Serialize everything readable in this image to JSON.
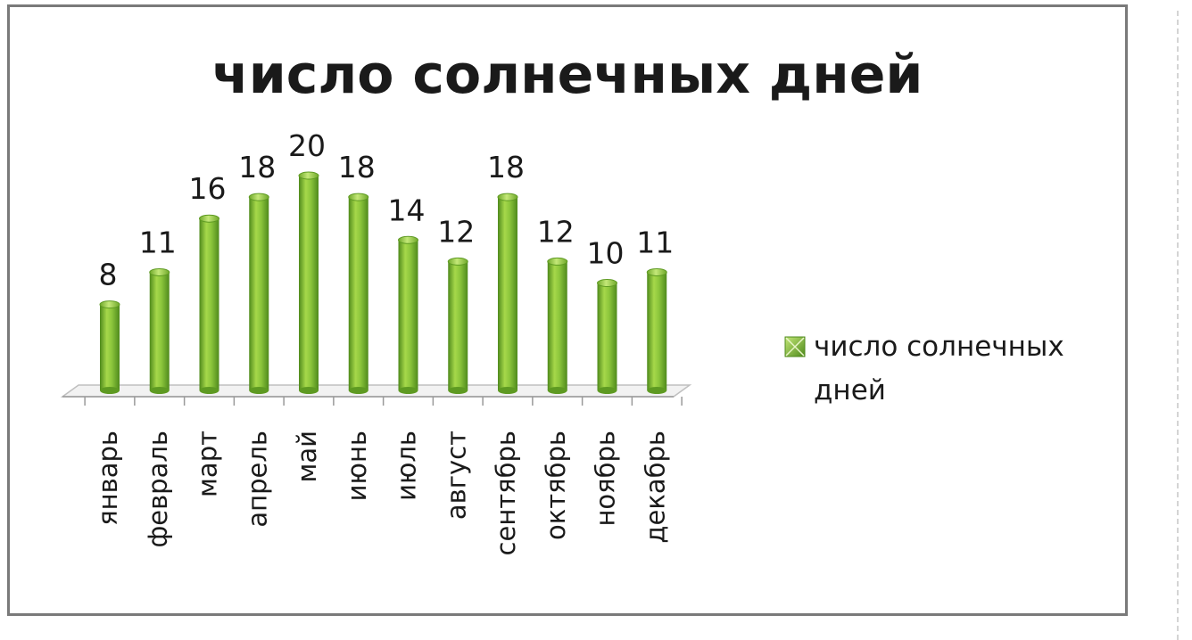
{
  "chart_data": {
    "type": "bar",
    "title": "число солнечных дней",
    "categories": [
      "январь",
      "февраль",
      "март",
      "апрель",
      "май",
      "июнь",
      "июль",
      "август",
      "сентябрь",
      "октябрь",
      "ноябрь",
      "декабрь"
    ],
    "series": [
      {
        "name": "число солнечных дней",
        "values": [
          8,
          11,
          16,
          18,
          20,
          18,
          14,
          12,
          18,
          12,
          10,
          11
        ]
      }
    ],
    "data_labels": true,
    "ylim": [
      0,
      20
    ],
    "grid": false,
    "legend_position": "right",
    "legend": {
      "line1": "число солнечных",
      "line2": "дней"
    },
    "colors": {
      "bar_light": "#a6d84a",
      "bar_mid": "#7ab82e",
      "bar_dark": "#4f8a1c",
      "floor": "#f2f2f2",
      "floor_edge": "#bfbfbf"
    }
  }
}
